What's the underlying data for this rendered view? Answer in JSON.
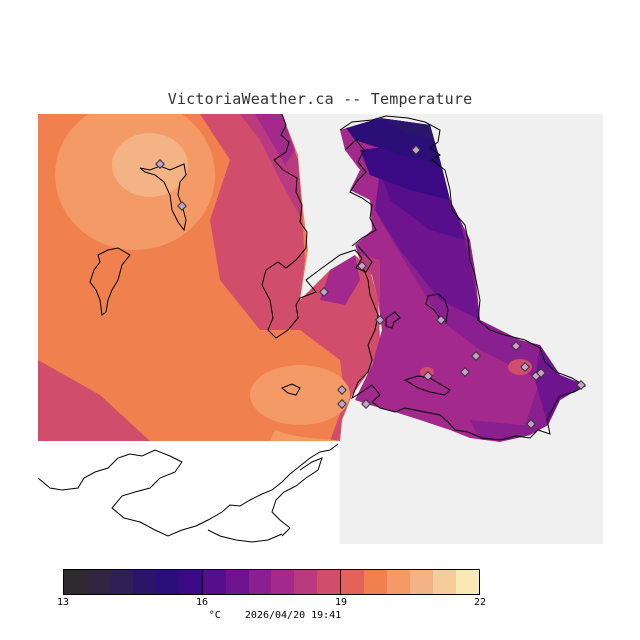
{
  "header": {
    "title": "VictoriaWeather.ca -- Temperature"
  },
  "map": {
    "type": "temperature-contour-map",
    "region": "Victoria / southern Vancouver Island",
    "colors": {
      "no_data": "#f0f0f0",
      "coastline": "#000000",
      "station_marker": "#c8a0c8"
    }
  },
  "legend": {
    "unit": "°C",
    "timestamp": "2026/04/20 19:41",
    "min": 13,
    "max": 22,
    "ticks": [
      "13",
      "16",
      "19",
      "22"
    ],
    "colors": [
      "#2e2a30",
      "#30243e",
      "#2e1f56",
      "#2a1568",
      "#2c0e78",
      "#3a0a84",
      "#560e8a",
      "#6e148e",
      "#8a1f90",
      "#a32a8c",
      "#ba3a80",
      "#d14d6c",
      "#e5625a",
      "#f0804e",
      "#f39a66",
      "#f4b384",
      "#f6cc9a",
      "#f7eab4"
    ]
  }
}
